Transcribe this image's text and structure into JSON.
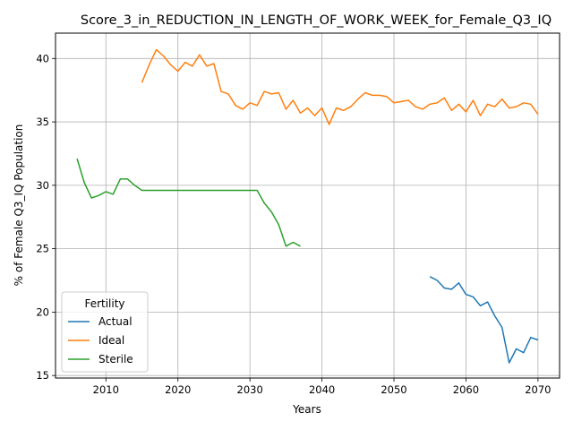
{
  "chart_data": {
    "type": "line",
    "title": "Score_3_in_REDUCTION_IN_LENGTH_OF_WORK_WEEK_for_Female_Q3_IQ",
    "xlabel": "Years",
    "ylabel": "% of Female Q3_IQ Population",
    "xlim": [
      2003,
      2073
    ],
    "ylim": [
      14.8,
      42.0
    ],
    "xticks": [
      2010,
      2020,
      2030,
      2040,
      2050,
      2060,
      2070
    ],
    "yticks": [
      15,
      20,
      25,
      30,
      35,
      40
    ],
    "grid": true,
    "legend": {
      "title": "Fertility",
      "placement": "lower-left"
    },
    "series": [
      {
        "name": "Actual",
        "color": "#1f77b4",
        "points": [
          [
            2055,
            22.8
          ],
          [
            2056,
            22.5
          ],
          [
            2057,
            21.9
          ],
          [
            2058,
            21.8
          ],
          [
            2059,
            22.3
          ],
          [
            2060,
            21.4
          ],
          [
            2061,
            21.2
          ],
          [
            2062,
            20.5
          ],
          [
            2063,
            20.8
          ],
          [
            2064,
            19.7
          ],
          [
            2065,
            18.8
          ],
          [
            2066,
            16.0
          ],
          [
            2067,
            17.1
          ],
          [
            2068,
            16.8
          ],
          [
            2069,
            18.0
          ],
          [
            2070,
            17.8
          ]
        ]
      },
      {
        "name": "Ideal",
        "color": "#ff7f0e",
        "points": [
          [
            2015,
            38.1
          ],
          [
            2016,
            39.5
          ],
          [
            2017,
            40.7
          ],
          [
            2018,
            40.2
          ],
          [
            2019,
            39.5
          ],
          [
            2020,
            39.0
          ],
          [
            2021,
            39.7
          ],
          [
            2022,
            39.4
          ],
          [
            2023,
            40.3
          ],
          [
            2024,
            39.4
          ],
          [
            2025,
            39.6
          ],
          [
            2026,
            37.4
          ],
          [
            2027,
            37.2
          ],
          [
            2028,
            36.3
          ],
          [
            2029,
            36.0
          ],
          [
            2030,
            36.5
          ],
          [
            2031,
            36.3
          ],
          [
            2032,
            37.4
          ],
          [
            2033,
            37.2
          ],
          [
            2034,
            37.3
          ],
          [
            2035,
            36.0
          ],
          [
            2036,
            36.7
          ],
          [
            2037,
            35.7
          ],
          [
            2038,
            36.1
          ],
          [
            2039,
            35.5
          ],
          [
            2040,
            36.1
          ],
          [
            2041,
            34.8
          ],
          [
            2042,
            36.1
          ],
          [
            2043,
            35.9
          ],
          [
            2044,
            36.2
          ],
          [
            2045,
            36.8
          ],
          [
            2046,
            37.3
          ],
          [
            2047,
            37.1
          ],
          [
            2048,
            37.1
          ],
          [
            2049,
            37.0
          ],
          [
            2050,
            36.5
          ],
          [
            2051,
            36.6
          ],
          [
            2052,
            36.7
          ],
          [
            2053,
            36.2
          ],
          [
            2054,
            36.0
          ],
          [
            2055,
            36.4
          ],
          [
            2056,
            36.5
          ],
          [
            2057,
            36.9
          ],
          [
            2058,
            35.9
          ],
          [
            2059,
            36.4
          ],
          [
            2060,
            35.8
          ],
          [
            2061,
            36.7
          ],
          [
            2062,
            35.5
          ],
          [
            2063,
            36.4
          ],
          [
            2064,
            36.2
          ],
          [
            2065,
            36.8
          ],
          [
            2066,
            36.1
          ],
          [
            2067,
            36.2
          ],
          [
            2068,
            36.5
          ],
          [
            2069,
            36.4
          ],
          [
            2070,
            35.6
          ]
        ]
      },
      {
        "name": "Sterile",
        "color": "#2ca02c",
        "points": [
          [
            2006,
            32.1
          ],
          [
            2007,
            30.2
          ],
          [
            2008,
            29.0
          ],
          [
            2009,
            29.2
          ],
          [
            2010,
            29.5
          ],
          [
            2011,
            29.3
          ],
          [
            2012,
            30.5
          ],
          [
            2013,
            30.5
          ],
          [
            2014,
            30.0
          ],
          [
            2015,
            29.6
          ],
          [
            2016,
            29.6
          ],
          [
            2017,
            29.6
          ],
          [
            2018,
            29.6
          ],
          [
            2019,
            29.6
          ],
          [
            2020,
            29.6
          ],
          [
            2021,
            29.6
          ],
          [
            2022,
            29.6
          ],
          [
            2023,
            29.6
          ],
          [
            2024,
            29.6
          ],
          [
            2025,
            29.6
          ],
          [
            2026,
            29.6
          ],
          [
            2027,
            29.6
          ],
          [
            2028,
            29.6
          ],
          [
            2029,
            29.6
          ],
          [
            2030,
            29.6
          ],
          [
            2031,
            29.6
          ],
          [
            2032,
            28.6
          ],
          [
            2033,
            27.9
          ],
          [
            2034,
            26.9
          ],
          [
            2035,
            25.2
          ],
          [
            2036,
            25.5
          ],
          [
            2037,
            25.2
          ]
        ]
      }
    ]
  }
}
